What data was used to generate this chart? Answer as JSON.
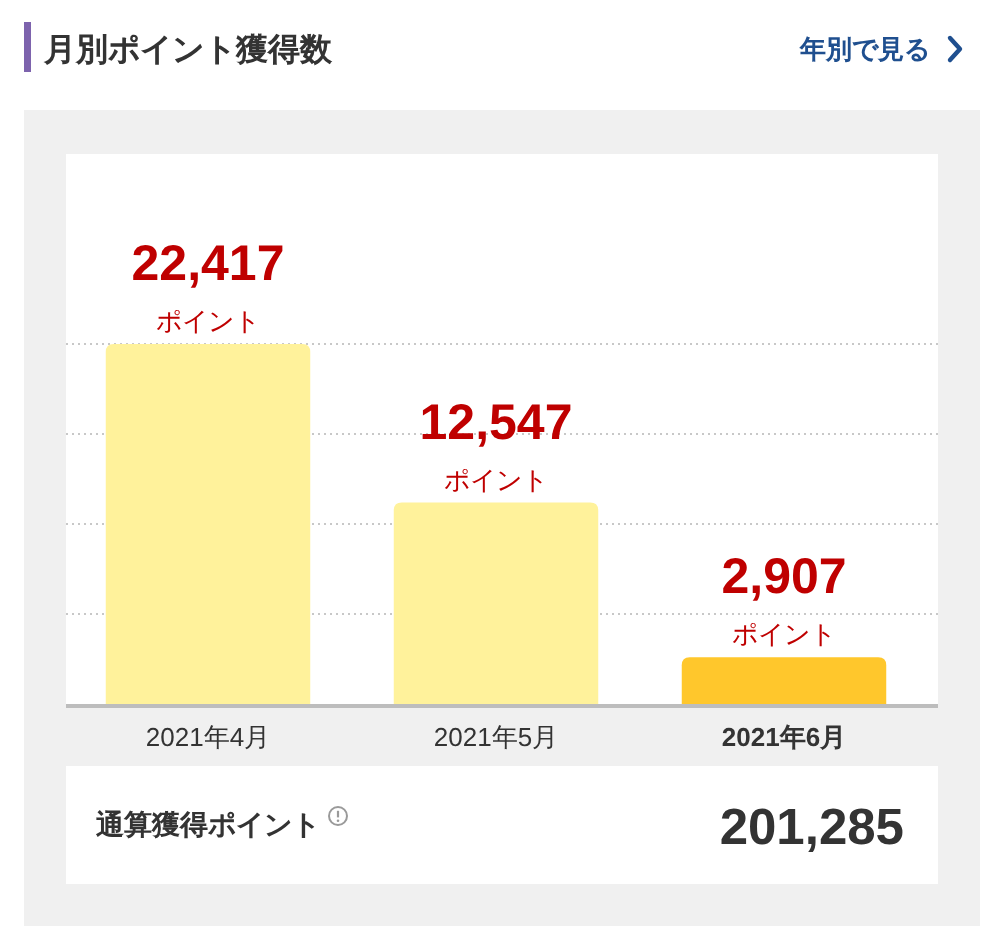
{
  "chart_data": {
    "type": "bar",
    "title": "月別ポイント獲得数",
    "categories": [
      "2021年4月",
      "2021年5月",
      "2021年6月"
    ],
    "values": [
      22417,
      12547,
      2907
    ],
    "colors": [
      "#fff29b",
      "#fff29b",
      "#ffc72c"
    ],
    "value_labels": [
      "22,417\nポイント",
      "12,547\nポイント",
      "2,907\nポイント"
    ],
    "ylim": [
      0,
      22417
    ],
    "yticks": [
      {
        "value": 5604,
        "label": null
      },
      {
        "value": 11209,
        "label": null
      },
      {
        "value": 16813,
        "label": null
      },
      {
        "value": 22417,
        "label": null
      }
    ],
    "grid": "y",
    "tick_labels": "x",
    "annotations": [
      "年別で見る",
      "通算獲得ポイント",
      "201,285"
    ]
  }
}
